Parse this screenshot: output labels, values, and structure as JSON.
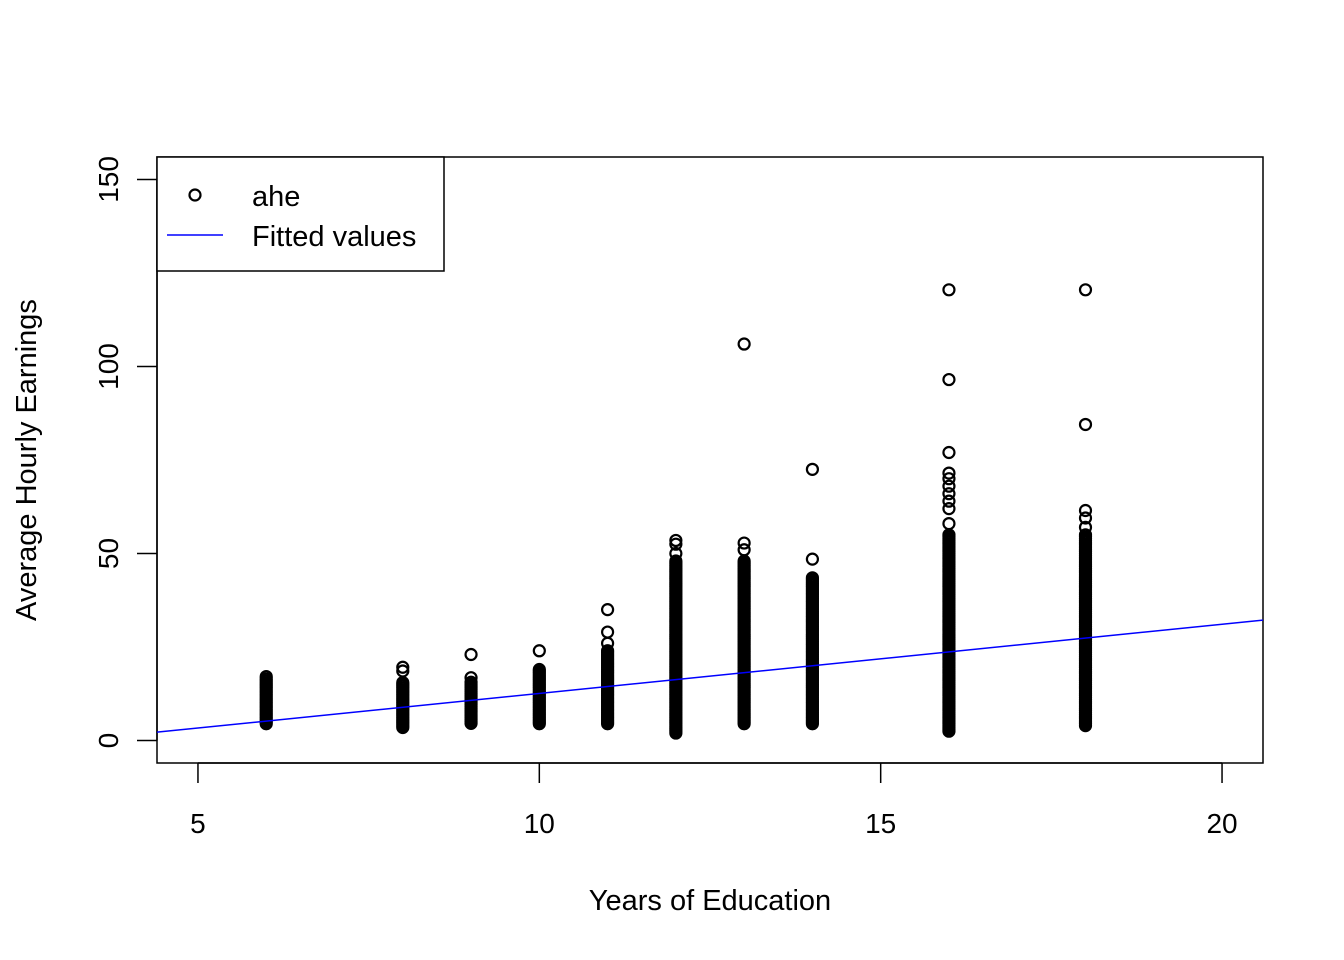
{
  "chart_data": {
    "type": "scatter",
    "title": "",
    "xlabel": "Years of Education",
    "ylabel": "Average Hourly Earnings",
    "xlim": [
      4.4,
      20.6
    ],
    "ylim": [
      -6,
      156
    ],
    "xticks": [
      5,
      10,
      15,
      20
    ],
    "yticks": [
      0,
      50,
      100,
      150
    ],
    "grid": false,
    "legend": {
      "position": "top-left",
      "entries": [
        {
          "label": "ahe",
          "marker": "circle-open",
          "color": "#000000"
        },
        {
          "label": "Fitted values",
          "marker": "line",
          "color": "#0000ff"
        }
      ]
    },
    "series": [
      {
        "name": "ahe",
        "kind": "points",
        "color": "#000000",
        "columns": [
          {
            "x": 6,
            "y_range": [
              4.5,
              16.5
            ],
            "outliers": [
              17.1
            ]
          },
          {
            "x": 8,
            "y_range": [
              3.5,
              15.5
            ],
            "outliers": [
              18.6,
              19.6
            ]
          },
          {
            "x": 9,
            "y_range": [
              4.6,
              16.0
            ],
            "outliers": [
              16.8,
              23.0
            ]
          },
          {
            "x": 10,
            "y_range": [
              4.5,
              19.0
            ],
            "outliers": [
              24.0
            ]
          },
          {
            "x": 11,
            "y_range": [
              4.5,
              24.0
            ],
            "outliers": [
              26.0,
              29.0,
              35.0
            ]
          },
          {
            "x": 12,
            "y_range": [
              2.0,
              48.0
            ],
            "outliers": [
              50.0,
              52.5,
              53.5
            ]
          },
          {
            "x": 13,
            "y_range": [
              4.5,
              48.0
            ],
            "outliers": [
              51.0,
              52.8,
              106.0
            ]
          },
          {
            "x": 14,
            "y_range": [
              4.5,
              43.5
            ],
            "outliers": [
              48.5,
              72.5
            ]
          },
          {
            "x": 16,
            "y_range": [
              2.5,
              55.0
            ],
            "outliers": [
              58.0,
              62.0,
              64.0,
              66.0,
              68.0,
              70.0,
              71.5,
              77.0,
              96.5,
              120.5
            ]
          },
          {
            "x": 18,
            "y_range": [
              4.0,
              55.0
            ],
            "outliers": [
              57.0,
              59.5,
              61.5,
              84.5,
              120.5
            ]
          }
        ]
      },
      {
        "name": "Fitted values",
        "kind": "line",
        "color": "#0000ff",
        "intercept": -5.9,
        "slope": 1.85
      }
    ]
  }
}
